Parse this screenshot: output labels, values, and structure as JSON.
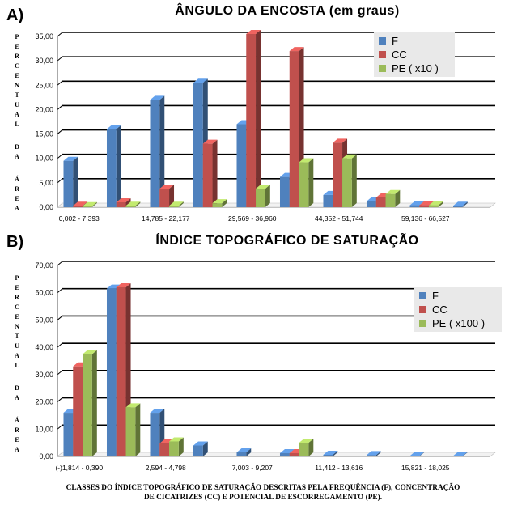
{
  "colors": {
    "F": "#4f81bd",
    "CC": "#c0504d",
    "PE": "#9bbb59"
  },
  "panels": [
    {
      "letter": "A)"
    },
    {
      "letter": "B)"
    }
  ],
  "ylabel_words": [
    "PERCENTUAL",
    "DA",
    "ÁREA"
  ],
  "caption_line1": "CLASSES DO ÍNDICE TOPOGRÁFICO DE SATURAÇÃO DESCRITAS PELA FREQUÊNCIA (F), CONCENTRAÇÃO",
  "caption_line2": "DE CICATRIZES (CC) E POTENCIAL DE ESCORREGAMENTO (PE).",
  "chart_data": [
    {
      "type": "bar",
      "title": "ÂNGULO DA ENCOSTA (em graus)",
      "ylabel": "PERCENTUAL DA ÁREA",
      "ylim": [
        0,
        35
      ],
      "yticks": [
        "0,00",
        "5,00",
        "10,00",
        "15,00",
        "20,00",
        "25,00",
        "30,00",
        "35,00"
      ],
      "categories": [
        "0,002 - 7,393",
        "",
        "14,785 - 22,177",
        "",
        "29,569 - 36,960",
        "",
        "44,352 - 51,744",
        "",
        "59,136 - 66,527",
        ""
      ],
      "series": [
        {
          "name": "F",
          "values": [
            9.5,
            16,
            22,
            25.5,
            17,
            6.2,
            2.5,
            1.2,
            0.4,
            0.3
          ]
        },
        {
          "name": "CC",
          "values": [
            0.3,
            1,
            3.8,
            13,
            35.5,
            32,
            13.2,
            2,
            0.4,
            0
          ]
        },
        {
          "name": "PE ( x10 )",
          "values": [
            0.2,
            0.3,
            0.3,
            0.8,
            3.8,
            9.2,
            10,
            2.7,
            0.4,
            0
          ]
        }
      ],
      "grid": true,
      "legend": "top-right"
    },
    {
      "type": "bar",
      "title": "ÍNDICE TOPOGRÁFICO DE SATURAÇÃO",
      "ylabel": "PERCENTUAL DA ÁREA",
      "ylim": [
        0,
        70
      ],
      "yticks": [
        "0,00",
        "10,00",
        "20,00",
        "30,00",
        "40,00",
        "50,00",
        "60,00",
        "70,00"
      ],
      "categories": [
        "(-)1,814 - 0,390",
        "",
        "2,594 - 4,798",
        "",
        "7,003 - 9,207",
        "",
        "11,412 - 13,616",
        "",
        "15,821 - 18,025",
        ""
      ],
      "series": [
        {
          "name": "F",
          "values": [
            16,
            61.5,
            16,
            4,
            1.5,
            1.2,
            0.6,
            0.5,
            0.2,
            0.2
          ]
        },
        {
          "name": "CC",
          "values": [
            33,
            62,
            4.8,
            0,
            0,
            1.2,
            0,
            0,
            0,
            0
          ]
        },
        {
          "name": "PE ( x100 )",
          "values": [
            37.5,
            18,
            5.5,
            0,
            0,
            5,
            0,
            0,
            0,
            0
          ]
        }
      ],
      "grid": true,
      "legend": "right"
    }
  ]
}
